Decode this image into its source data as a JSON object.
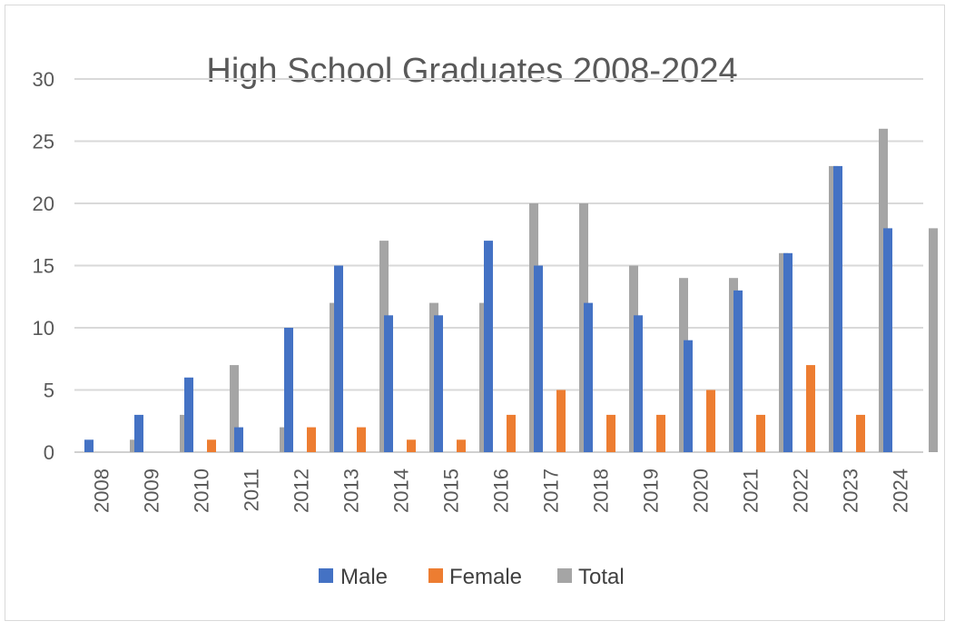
{
  "chart_data": {
    "type": "bar",
    "title": "High School Graduates 2008-2024",
    "xlabel": "",
    "ylabel": "",
    "ylim": [
      0,
      30
    ],
    "yticks": [
      0,
      5,
      10,
      15,
      20,
      25,
      30
    ],
    "grid": true,
    "legend_position": "bottom",
    "categories": [
      "2008",
      "2009",
      "2010",
      "2011",
      "2012",
      "2013",
      "2014",
      "2015",
      "2016",
      "2017",
      "2018",
      "2019",
      "2020",
      "2021",
      "2022",
      "2023",
      "2024"
    ],
    "series": [
      {
        "name": "Male",
        "color": "#4472C4",
        "values": [
          1,
          3,
          6,
          2,
          10,
          15,
          11,
          11,
          17,
          15,
          12,
          11,
          9,
          13,
          16,
          23,
          18
        ]
      },
      {
        "name": "Female",
        "color": "#ED7D31",
        "values": [
          0,
          0,
          1,
          0,
          2,
          2,
          1,
          1,
          3,
          5,
          3,
          3,
          5,
          3,
          7,
          3,
          0
        ]
      },
      {
        "name": "Total",
        "color": "#A5A5A5",
        "values": [
          1,
          3,
          7,
          2,
          12,
          17,
          12,
          12,
          20,
          20,
          15,
          14,
          14,
          16,
          23,
          26,
          18
        ]
      }
    ]
  }
}
